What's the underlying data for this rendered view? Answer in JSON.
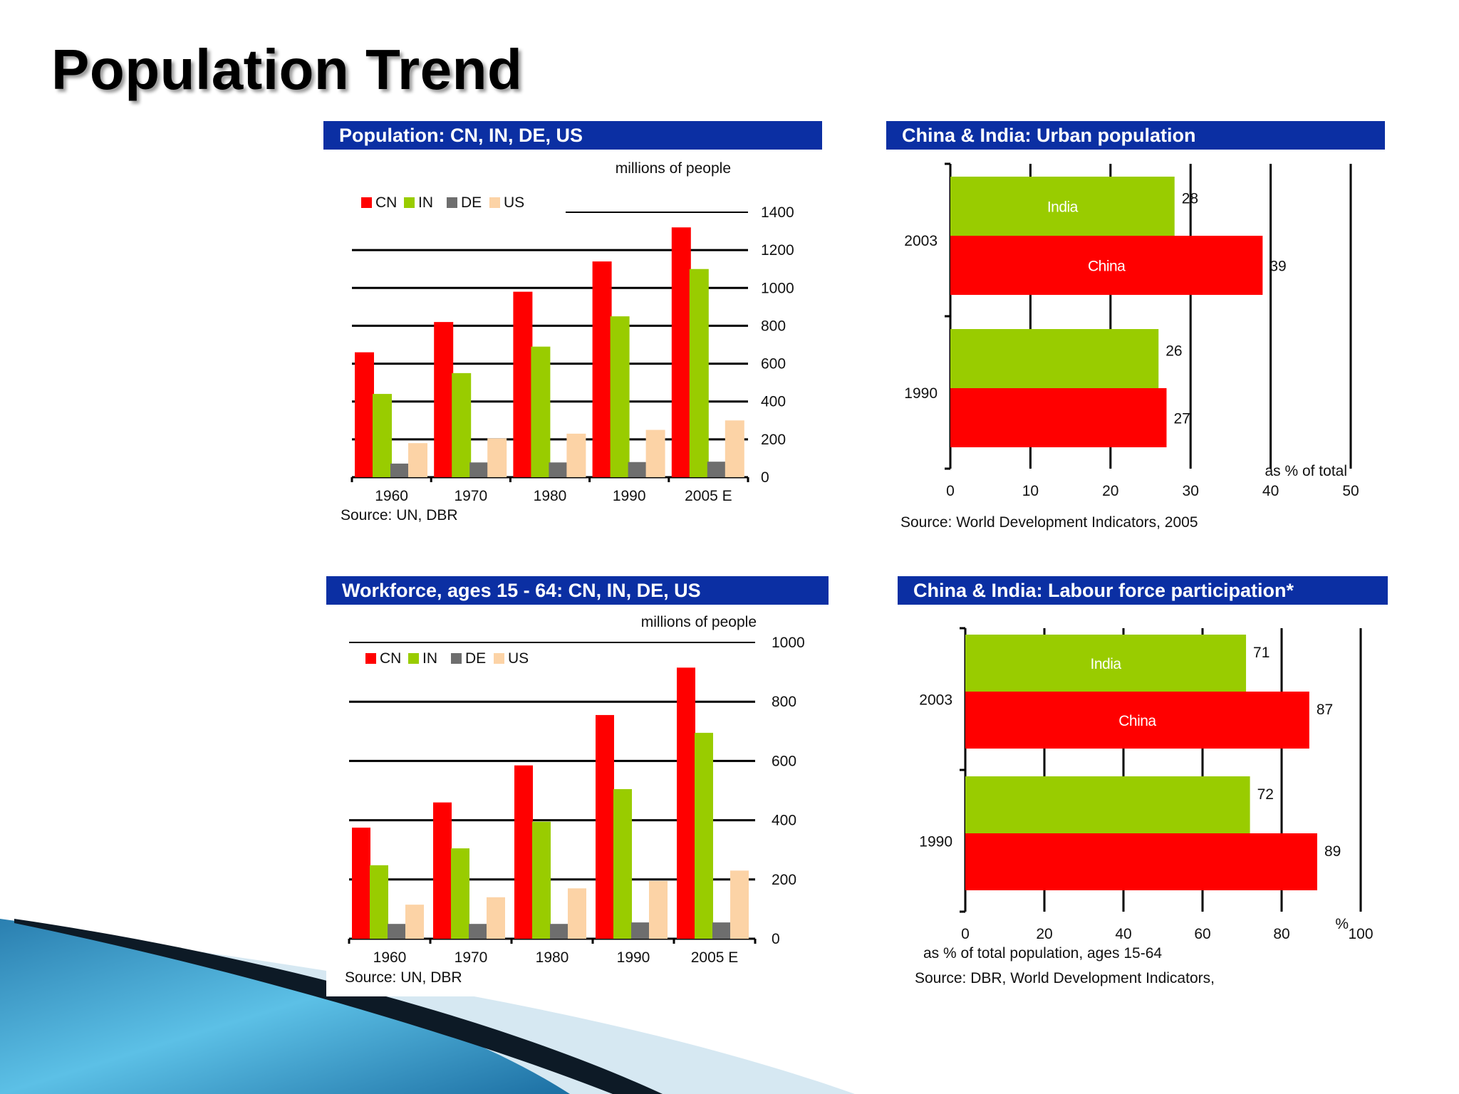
{
  "slide": {
    "title": "Population Trend"
  },
  "colors": {
    "CN": "#ff0000",
    "IN": "#99cc00",
    "DE": "#6e6e6e",
    "US": "#fcd3a6",
    "China": "#ff0000",
    "India": "#99cc00",
    "header": "#0b2fa3"
  },
  "chart_data": [
    {
      "id": "population",
      "type": "bar",
      "title": "Population: CN, IN, DE, US",
      "units_label": "millions of people",
      "source": "Source: UN, DBR",
      "categories": [
        "1960",
        "1970",
        "1980",
        "1990",
        "2005 E"
      ],
      "series": [
        {
          "name": "CN",
          "values": [
            660,
            820,
            980,
            1140,
            1320
          ]
        },
        {
          "name": "IN",
          "values": [
            440,
            550,
            690,
            850,
            1100
          ]
        },
        {
          "name": "DE",
          "values": [
            72,
            78,
            78,
            80,
            82
          ]
        },
        {
          "name": "US",
          "values": [
            180,
            205,
            230,
            250,
            300
          ]
        }
      ],
      "ylim": [
        0,
        1400
      ],
      "yticks": [
        "0",
        "200",
        "400",
        "600",
        "800",
        "1000",
        "1200",
        "1400"
      ],
      "legend": "top-left",
      "grid": true
    },
    {
      "id": "urban",
      "type": "bar",
      "orientation": "horizontal",
      "title": "China & India: Urban population",
      "axis_note": "as % of total",
      "source": "Source: World Development Indicators, 2005",
      "categories": [
        "2003",
        "1990"
      ],
      "series": [
        {
          "name": "India",
          "values": [
            28,
            26
          ]
        },
        {
          "name": "China",
          "values": [
            39,
            27
          ]
        }
      ],
      "xlim": [
        0,
        50
      ],
      "xticks": [
        "0",
        "10",
        "20",
        "30",
        "40",
        "50"
      ],
      "grid": true
    },
    {
      "id": "workforce",
      "type": "bar",
      "title": "Workforce, ages 15 - 64: CN, IN, DE, US",
      "units_label": "millions of people",
      "source": "Source: UN, DBR",
      "categories": [
        "1960",
        "1970",
        "1980",
        "1990",
        "2005 E"
      ],
      "series": [
        {
          "name": "CN",
          "values": [
            375,
            460,
            585,
            755,
            915
          ]
        },
        {
          "name": "IN",
          "values": [
            248,
            305,
            395,
            505,
            695
          ]
        },
        {
          "name": "DE",
          "values": [
            50,
            50,
            50,
            55,
            55
          ]
        },
        {
          "name": "US",
          "values": [
            115,
            140,
            170,
            195,
            230
          ]
        }
      ],
      "ylim": [
        0,
        1000
      ],
      "yticks": [
        "0",
        "200",
        "400",
        "600",
        "800",
        "1000"
      ],
      "legend": "top-left",
      "grid": true
    },
    {
      "id": "labour",
      "type": "bar",
      "orientation": "horizontal",
      "title": "China & India: Labour force participation*",
      "axis_note": "%",
      "xlabel": "as % of total population, ages 15-64",
      "source": "Source: DBR, World Development Indicators,",
      "categories": [
        "2003",
        "1990"
      ],
      "series": [
        {
          "name": "India",
          "values": [
            71,
            72
          ]
        },
        {
          "name": "China",
          "values": [
            87,
            89
          ]
        }
      ],
      "xlim": [
        0,
        100
      ],
      "xticks": [
        "0",
        "20",
        "40",
        "60",
        "80",
        "100"
      ],
      "grid": true
    }
  ]
}
